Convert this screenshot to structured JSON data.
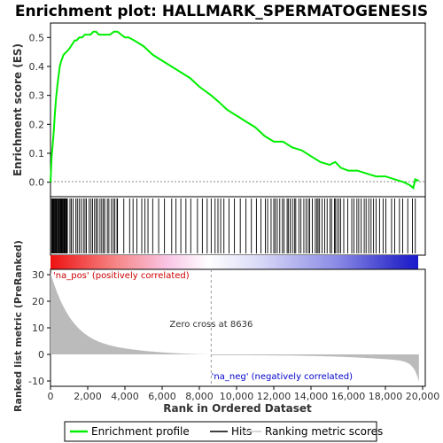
{
  "chart_data": {
    "type": "line",
    "title": "Enrichment plot: HALLMARK_SPERMATOGENESIS",
    "xlabel": "Rank in Ordered Dataset",
    "ylabel_top": "Enrichment score (ES)",
    "ylabel_bottom": "Ranked list metric (PreRanked)",
    "xlim": [
      0,
      20000
    ],
    "top_ylim": [
      -0.05,
      0.55
    ],
    "bottom_ylim": [
      -12,
      32
    ],
    "x_ticks": [
      "0",
      "2,000",
      "4,000",
      "6,000",
      "8,000",
      "10,000",
      "12,000",
      "14,000",
      "16,000",
      "18,000",
      "20,000"
    ],
    "x_tick_values": [
      0,
      2000,
      4000,
      6000,
      8000,
      10000,
      12000,
      14000,
      16000,
      18000,
      20000
    ],
    "top_y_ticks": [
      "0.0",
      "0.1",
      "0.2",
      "0.3",
      "0.4",
      "0.5"
    ],
    "top_y_tick_values": [
      0,
      0.1,
      0.2,
      0.3,
      0.4,
      0.5
    ],
    "bottom_y_ticks": [
      "-10",
      "0",
      "10",
      "20",
      "30"
    ],
    "bottom_y_tick_values": [
      -10,
      0,
      10,
      20,
      30
    ],
    "zero_cross_rank": 8636,
    "zero_cross_label": "Zero cross at 8636",
    "pos_label": "'na_pos' (positively correlated)",
    "neg_label": "'na_neg' (negatively correlated)",
    "colors": {
      "es_line": "#00ee00",
      "pos_label": "#cc0000",
      "neg_label": "#0000cc",
      "metric_fill": "#bbbbbb"
    },
    "series": [
      {
        "name": "Enrichment profile",
        "x": [
          0,
          60,
          120,
          180,
          240,
          300,
          360,
          420,
          500,
          580,
          700,
          850,
          1000,
          1100,
          1200,
          1300,
          1400,
          1550,
          1700,
          1850,
          2000,
          2150,
          2300,
          2450,
          2600,
          2800,
          3000,
          3200,
          3400,
          3600,
          3800,
          4000,
          4200,
          4500,
          5000,
          5500,
          6000,
          6500,
          7000,
          7500,
          8000,
          8636,
          9000,
          9500,
          10000,
          10500,
          11000,
          11500,
          12000,
          12500,
          13000,
          13500,
          14000,
          14500,
          15000,
          15300,
          15600,
          16000,
          16500,
          17000,
          17500,
          18000,
          18500,
          19000,
          19300,
          19500,
          19600,
          19800
        ],
        "values": [
          0.0,
          0.09,
          0.13,
          0.18,
          0.24,
          0.29,
          0.33,
          0.36,
          0.4,
          0.42,
          0.44,
          0.45,
          0.46,
          0.47,
          0.48,
          0.49,
          0.49,
          0.5,
          0.5,
          0.51,
          0.51,
          0.51,
          0.52,
          0.52,
          0.51,
          0.51,
          0.51,
          0.51,
          0.52,
          0.52,
          0.51,
          0.5,
          0.5,
          0.49,
          0.47,
          0.44,
          0.42,
          0.4,
          0.38,
          0.36,
          0.33,
          0.3,
          0.28,
          0.25,
          0.23,
          0.21,
          0.19,
          0.16,
          0.14,
          0.14,
          0.12,
          0.11,
          0.09,
          0.07,
          0.06,
          0.07,
          0.05,
          0.04,
          0.04,
          0.03,
          0.02,
          0.02,
          0.01,
          0.0,
          -0.01,
          -0.02,
          0.01,
          0.005
        ]
      }
    ],
    "legend": [
      "Enrichment profile",
      "Hits",
      "Ranking metric scores"
    ],
    "legend_position": "bottom"
  }
}
